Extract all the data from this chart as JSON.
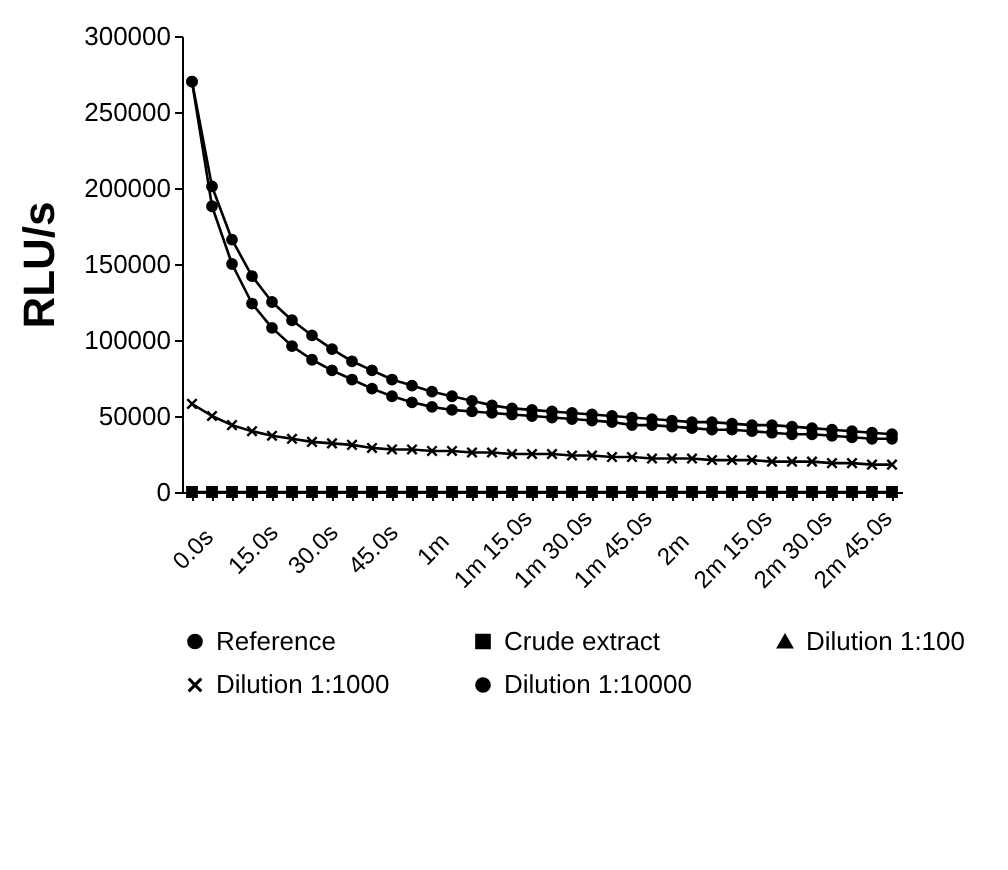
{
  "chart_data": {
    "type": "line",
    "ylabel": "RLU/s",
    "categories": [
      "0.0s",
      null,
      null,
      "15.0s",
      null,
      null,
      "30.0s",
      null,
      null,
      "45.0s",
      null,
      null,
      "1m",
      null,
      null,
      "1m 15.0s",
      null,
      null,
      "1m 30.0s",
      null,
      null,
      "1m 45.0s",
      null,
      null,
      "2m",
      null,
      null,
      "2m 15.0s",
      null,
      null,
      "2m 30.0s",
      null,
      null,
      "2m 45.0s",
      null,
      null
    ],
    "ylim": [
      0,
      300000
    ],
    "yticks": [
      0,
      50000,
      100000,
      150000,
      200000,
      250000,
      300000
    ],
    "grid": false,
    "legend": "bottom",
    "series": [
      {
        "name": "Reference",
        "color": "#000000",
        "marker": "circle",
        "values": [
          270000,
          201000,
          166000,
          142000,
          125000,
          113000,
          103000,
          94000,
          86000,
          80000,
          74000,
          70000,
          66000,
          63000,
          60000,
          57000,
          55000,
          54000,
          53000,
          52000,
          51000,
          50000,
          49000,
          48000,
          47000,
          46000,
          46000,
          45000,
          44000,
          44000,
          43000,
          42000,
          41000,
          40000,
          39000,
          38000
        ]
      },
      {
        "name": "Crude extract",
        "color": "#000000",
        "marker": "square",
        "values": [
          0,
          0,
          0,
          0,
          0,
          0,
          0,
          0,
          0,
          0,
          0,
          0,
          0,
          0,
          0,
          0,
          0,
          0,
          0,
          0,
          0,
          0,
          0,
          0,
          0,
          0,
          0,
          0,
          0,
          0,
          0,
          0,
          0,
          0,
          0,
          0
        ]
      },
      {
        "name": "Dilution 1:100",
        "color": "#000000",
        "marker": "triangle",
        "values": [
          null,
          null,
          null,
          null,
          null,
          null,
          null,
          null,
          null,
          null,
          null,
          null,
          null,
          null,
          null,
          null,
          null,
          null,
          null,
          null,
          null,
          null,
          null,
          null,
          null,
          null,
          null,
          null,
          null,
          null,
          null,
          null,
          null,
          null,
          null,
          null
        ]
      },
      {
        "name": "Dilution 1:1000",
        "color": "#000000",
        "marker": "cross",
        "values": [
          58000,
          50000,
          44000,
          40000,
          37000,
          35000,
          33000,
          32000,
          31000,
          29000,
          28000,
          28000,
          27000,
          27000,
          26000,
          26000,
          25000,
          25000,
          25000,
          24000,
          24000,
          23000,
          23000,
          22000,
          22000,
          22000,
          21000,
          21000,
          21000,
          20000,
          20000,
          20000,
          19000,
          19000,
          18000,
          18000
        ]
      },
      {
        "name": "Dilution 1:10000",
        "color": "#000000",
        "marker": "circle",
        "values": [
          270000,
          188000,
          150000,
          124000,
          108000,
          96000,
          87000,
          80000,
          74000,
          68000,
          63000,
          59000,
          56000,
          54000,
          53000,
          52000,
          51000,
          50000,
          49000,
          48000,
          47000,
          46000,
          44000,
          44000,
          43000,
          42000,
          41000,
          41000,
          40000,
          39000,
          38000,
          38000,
          37000,
          36000,
          35000,
          35000
        ]
      }
    ]
  }
}
